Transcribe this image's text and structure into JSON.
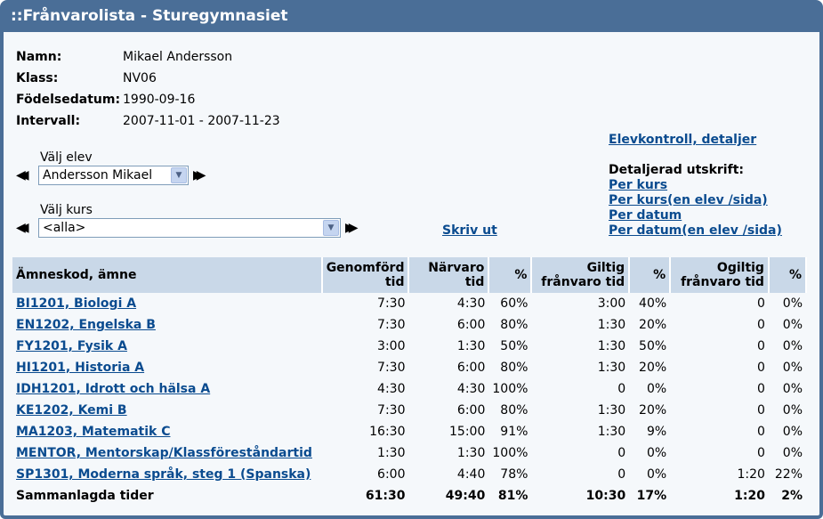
{
  "window": {
    "title": "::Frånvarolista - Sturegymnasiet"
  },
  "student": {
    "fields": [
      {
        "label": "Namn:",
        "value": "Mikael Andersson"
      },
      {
        "label": "Klass:",
        "value": "NV06"
      },
      {
        "label": "Födelsedatum:",
        "value": "1990-09-16"
      },
      {
        "label": "Intervall:",
        "value": "2007-11-01 - 2007-11-23"
      }
    ]
  },
  "selectors": {
    "student_label": "Välj elev",
    "student_value": "Andersson Mikael",
    "course_label": "Välj kurs",
    "course_value": "<alla>",
    "prev_icon": "double-left-arrow-icon",
    "next_icon": "double-right-arrow-icon",
    "dropdown_icon": "chevron-down-icon"
  },
  "links": {
    "print": "Skriv ut",
    "student_control": "Elevkontroll, detaljer",
    "detailed_label": "Detaljerad utskrift:",
    "per_course": "Per kurs",
    "per_course_single": "Per kurs(en elev /sida)",
    "per_date": "Per datum",
    "per_date_single": "Per datum(en elev /sida)"
  },
  "table": {
    "headers": {
      "subject": "Ämneskod, ämne",
      "completed_1": "Genomförd",
      "completed_2": "tid",
      "present_1": "Närvaro",
      "present_2": "tid",
      "pct1": "%",
      "valid_1": "Giltig",
      "valid_2": "frånvaro tid",
      "pct2": "%",
      "invalid_1": "Ogiltig",
      "invalid_2": "frånvaro tid",
      "pct3": "%"
    },
    "rows": [
      {
        "subject": "BI1201, Biologi A",
        "completed": "7:30",
        "present": "4:30",
        "pct1": "60%",
        "valid": "3:00",
        "pct2": "40%",
        "invalid": "0",
        "pct3": "0%"
      },
      {
        "subject": "EN1202, Engelska B",
        "completed": "7:30",
        "present": "6:00",
        "pct1": "80%",
        "valid": "1:30",
        "pct2": "20%",
        "invalid": "0",
        "pct3": "0%"
      },
      {
        "subject": "FY1201, Fysik A",
        "completed": "3:00",
        "present": "1:30",
        "pct1": "50%",
        "valid": "1:30",
        "pct2": "50%",
        "invalid": "0",
        "pct3": "0%"
      },
      {
        "subject": "HI1201, Historia A",
        "completed": "7:30",
        "present": "6:00",
        "pct1": "80%",
        "valid": "1:30",
        "pct2": "20%",
        "invalid": "0",
        "pct3": "0%"
      },
      {
        "subject": "IDH1201, Idrott och hälsa A",
        "completed": "4:30",
        "present": "4:30",
        "pct1": "100%",
        "valid": "0",
        "pct2": "0%",
        "invalid": "0",
        "pct3": "0%"
      },
      {
        "subject": "KE1202, Kemi B",
        "completed": "7:30",
        "present": "6:00",
        "pct1": "80%",
        "valid": "1:30",
        "pct2": "20%",
        "invalid": "0",
        "pct3": "0%"
      },
      {
        "subject": "MA1203, Matematik C",
        "completed": "16:30",
        "present": "15:00",
        "pct1": "91%",
        "valid": "1:30",
        "pct2": "9%",
        "invalid": "0",
        "pct3": "0%"
      },
      {
        "subject": "MENTOR, Mentorskap/Klassföreståndartid",
        "completed": "1:30",
        "present": "1:30",
        "pct1": "100%",
        "valid": "0",
        "pct2": "0%",
        "invalid": "0",
        "pct3": "0%"
      },
      {
        "subject": "SP1301, Moderna språk, steg 1 (Spanska)",
        "completed": "6:00",
        "present": "4:40",
        "pct1": "78%",
        "valid": "0",
        "pct2": "0%",
        "invalid": "1:20",
        "pct3": "22%"
      }
    ],
    "total": {
      "label": "Sammanlagda tider",
      "completed": "61:30",
      "present": "49:40",
      "pct1": "81%",
      "valid": "10:30",
      "pct2": "17%",
      "invalid": "1:20",
      "pct3": "2%"
    }
  }
}
